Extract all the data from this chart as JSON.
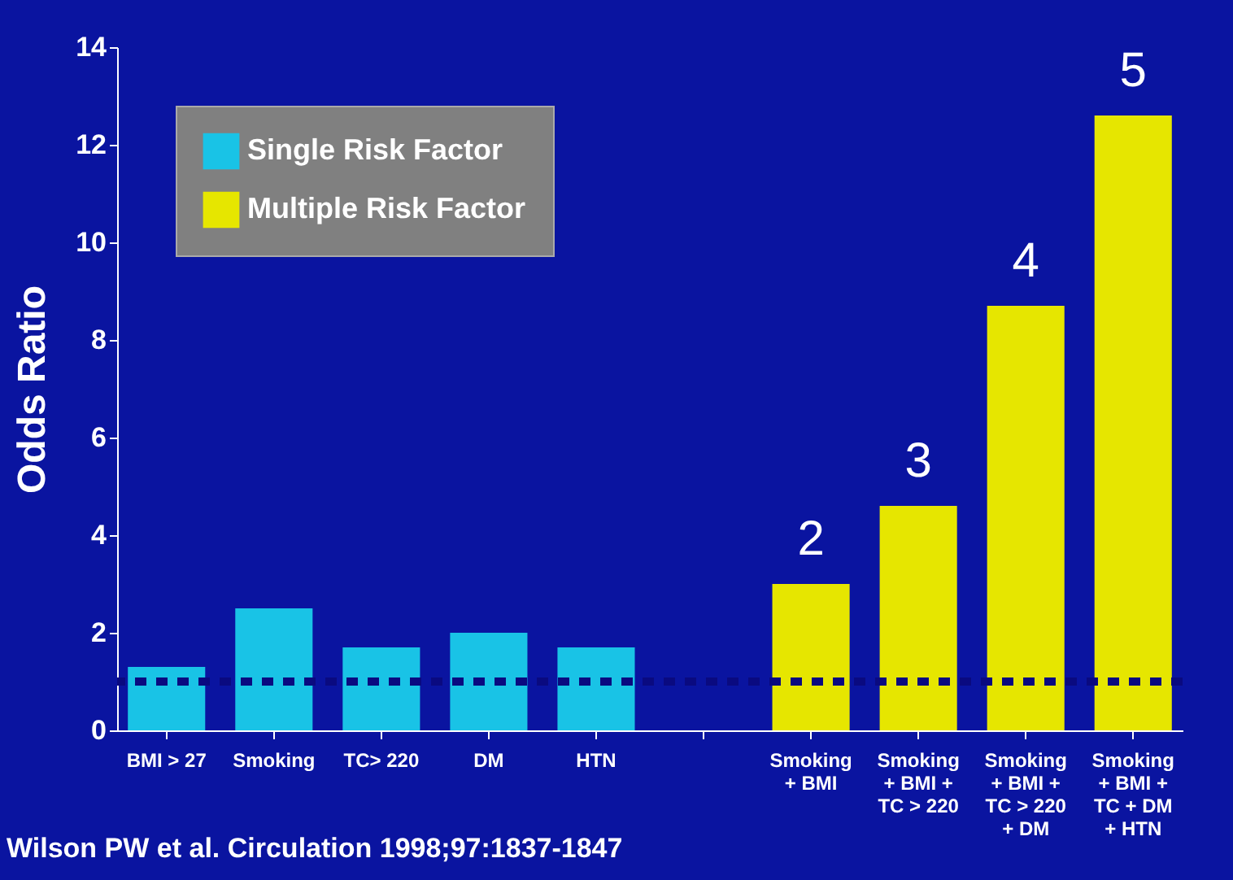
{
  "chart_data": {
    "type": "bar",
    "ylabel": "Odds Ratio",
    "categories": [
      "BMI > 27",
      "Smoking",
      "TC> 220",
      "DM",
      "HTN",
      null,
      "Smoking + BMI",
      "Smoking + BMI + TC > 220",
      "Smoking + BMI + TC > 220 + DM",
      "Smoking + BMI + TC + DM + HTN"
    ],
    "series": [
      {
        "name": "Single Risk Factor",
        "color": "#19c3e6",
        "values": [
          1.3,
          2.5,
          1.7,
          2.0,
          1.7,
          null,
          null,
          null,
          null,
          null
        ]
      },
      {
        "name": "Multiple Risk Factor",
        "color": "#e6e600",
        "values": [
          null,
          null,
          null,
          null,
          null,
          null,
          3.0,
          4.6,
          8.7,
          12.6
        ]
      }
    ],
    "ylim": [
      0,
      14
    ],
    "yticks": [
      0,
      2,
      4,
      6,
      8,
      10,
      12,
      14
    ],
    "ref_lines": [
      {
        "axis": "y",
        "value": 1,
        "color": "#0a0a80",
        "line_style": "dashed"
      }
    ],
    "annotations": [
      {
        "text": "2",
        "x": "Smoking + BMI",
        "y": 3.0
      },
      {
        "text": "3",
        "x": "Smoking + BMI + TC > 220",
        "y": 4.6
      },
      {
        "text": "4",
        "x": "Smoking + BMI + TC > 220 + DM",
        "y": 8.7
      },
      {
        "text": "5",
        "x": "Smoking + BMI + TC + DM + HTN",
        "y": 12.6
      },
      "Wilson PW et al. Circulation 1998;97:1837-1847"
    ],
    "legend": "top left",
    "grid": false
  }
}
